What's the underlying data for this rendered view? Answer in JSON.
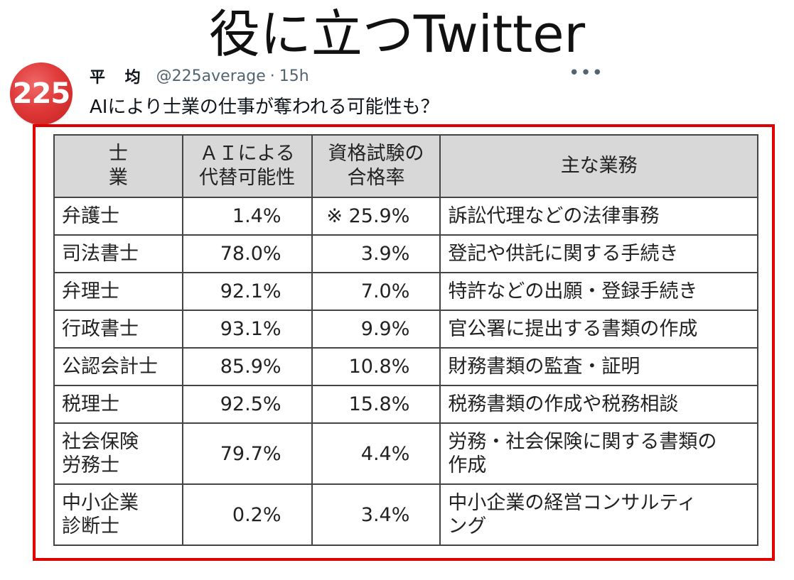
{
  "page": {
    "title": "役に立つTwitter"
  },
  "tweet": {
    "avatar_text": "225",
    "display_name": "平 均",
    "handle": "@225average",
    "separator": "·",
    "time": "15h",
    "more_label": "•••",
    "text": "AIにより士業の仕事が奪われる可能性も？"
  },
  "table": {
    "headers": [
      "士 業",
      "ＡＩによる\n代替可能性",
      "資格試験の\n合格率",
      "主な業務"
    ],
    "rows": [
      {
        "occupation": "弁護士",
        "ai": "1.4%",
        "pass": "※ 25.9%",
        "duties": "訴訟代理などの法律事務"
      },
      {
        "occupation": "司法書士",
        "ai": "78.0%",
        "pass": "3.9%",
        "duties": "登記や供託に関する手続き"
      },
      {
        "occupation": "弁理士",
        "ai": "92.1%",
        "pass": "7.0%",
        "duties": "特許などの出願・登録手続き"
      },
      {
        "occupation": "行政書士",
        "ai": "93.1%",
        "pass": "9.9%",
        "duties": "官公署に提出する書類の作成"
      },
      {
        "occupation": "公認会計士",
        "ai": "85.9%",
        "pass": "10.8%",
        "duties": "財務書類の監査・証明"
      },
      {
        "occupation": "税理士",
        "ai": "92.5%",
        "pass": "15.8%",
        "duties": "税務書類の作成や税務相談"
      },
      {
        "occupation": "社会保険\n労務士",
        "ai": "79.7%",
        "pass": "4.4%",
        "duties": "労務・社会保険に関する書類の\n作成"
      },
      {
        "occupation": "中小企業\n診断士",
        "ai": "0.2%",
        "pass": "3.4%",
        "duties": "中小企業の経営コンサルティ\nング"
      }
    ]
  },
  "colors": {
    "frame": "#e00000",
    "avatar": "#e03a3a",
    "header_bg": "#d8d8d8",
    "muted": "#536471"
  }
}
